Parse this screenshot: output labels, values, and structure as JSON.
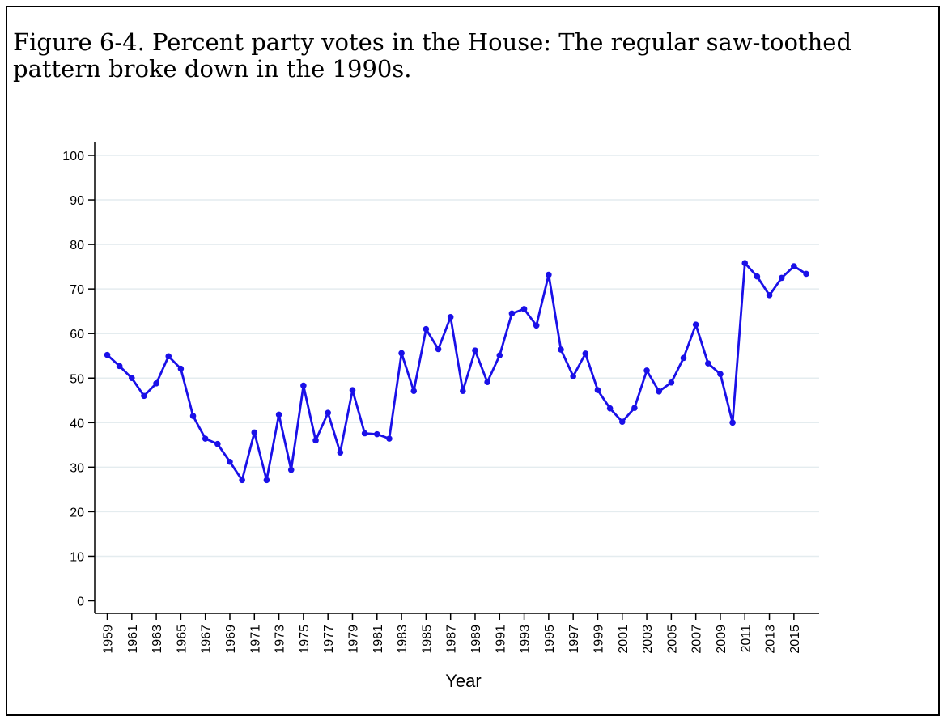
{
  "chart_data": {
    "type": "line",
    "title": "Figure 6-4. Percent party votes in the House: The regular saw-toothed pattern broke down in the 1990s.",
    "xlabel": "Year",
    "ylabel": "",
    "xlim": [
      1959,
      2016
    ],
    "ylim": [
      0,
      100
    ],
    "yticks": [
      0,
      10,
      20,
      30,
      40,
      50,
      60,
      70,
      80,
      90,
      100
    ],
    "xtick_labels": [
      "1959",
      "1961",
      "1963",
      "1965",
      "1967",
      "1969",
      "1971",
      "1973",
      "1975",
      "1977",
      "1979",
      "1981",
      "1983",
      "1985",
      "1987",
      "1989",
      "1991",
      "1993",
      "1995",
      "1997",
      "1999",
      "2001",
      "2003",
      "2005",
      "2007",
      "2009",
      "2011",
      "2013",
      "2015"
    ],
    "grid": true,
    "line_color": "#1a10e8",
    "series": [
      {
        "x": [
          1959,
          1960,
          1961,
          1962,
          1963,
          1964,
          1965,
          1966,
          1967,
          1968,
          1969,
          1970,
          1971,
          1972,
          1973,
          1974,
          1975,
          1976,
          1977,
          1978,
          1979,
          1980,
          1981,
          1982,
          1983,
          1984,
          1985,
          1986,
          1987,
          1988,
          1989,
          1990,
          1991,
          1992,
          1993,
          1994,
          1995,
          1996,
          1997,
          1998,
          1999,
          2000,
          2001,
          2002,
          2003,
          2004,
          2005,
          2006,
          2007,
          2008,
          2009,
          2010,
          2011,
          2012,
          2013,
          2014,
          2015,
          2016
        ],
        "values": [
          55.2,
          52.7,
          50.0,
          46.0,
          48.8,
          54.9,
          52.1,
          41.5,
          36.4,
          35.2,
          31.2,
          27.1,
          37.8,
          27.1,
          41.8,
          29.4,
          48.3,
          36.0,
          42.2,
          33.3,
          47.3,
          37.6,
          37.4,
          36.4,
          55.6,
          47.1,
          61.0,
          56.5,
          63.7,
          47.1,
          56.2,
          49.1,
          55.1,
          64.5,
          65.5,
          61.8,
          73.2,
          56.4,
          50.4,
          55.5,
          47.3,
          43.2,
          40.2,
          43.3,
          51.7,
          47.0,
          49.0,
          54.5,
          62.0,
          53.3,
          50.9,
          40.0,
          75.8,
          72.8,
          68.6,
          72.5,
          75.1,
          73.4
        ]
      }
    ]
  }
}
